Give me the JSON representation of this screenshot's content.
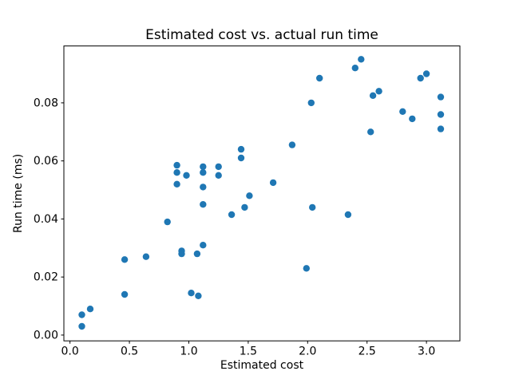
{
  "figure": {
    "background_color": "#ffffff",
    "frame_color": "#000000"
  },
  "chart_data": {
    "type": "scatter",
    "title": "Estimated cost vs. actual run time",
    "xlabel": "Estimated cost",
    "ylabel": "Run time (ms)",
    "marker_color": "#1f77b4",
    "marker_shape": "circle",
    "grid": false,
    "legend": null,
    "xlim": [
      -0.0515,
      3.2815
    ],
    "ylim": [
      -0.002,
      0.0996
    ],
    "x_ticks": [
      0.0,
      0.5,
      1.0,
      1.5,
      2.0,
      2.5,
      3.0
    ],
    "x_tick_labels": [
      "0.0",
      "0.5",
      "1.0",
      "1.5",
      "2.0",
      "2.5",
      "3.0"
    ],
    "y_ticks": [
      0.0,
      0.02,
      0.04,
      0.06,
      0.08
    ],
    "y_tick_labels": [
      "0.00",
      "0.02",
      "0.04",
      "0.06",
      "0.08"
    ],
    "points": [
      [
        0.1,
        0.003
      ],
      [
        0.1,
        0.007
      ],
      [
        0.17,
        0.009
      ],
      [
        0.46,
        0.014
      ],
      [
        0.46,
        0.026
      ],
      [
        0.64,
        0.027
      ],
      [
        0.82,
        0.039
      ],
      [
        0.9,
        0.0585
      ],
      [
        0.9,
        0.056
      ],
      [
        0.9,
        0.052
      ],
      [
        0.94,
        0.029
      ],
      [
        0.94,
        0.028
      ],
      [
        0.98,
        0.055
      ],
      [
        1.02,
        0.0145
      ],
      [
        1.08,
        0.0135
      ],
      [
        1.07,
        0.028
      ],
      [
        1.12,
        0.058
      ],
      [
        1.12,
        0.056
      ],
      [
        1.12,
        0.051
      ],
      [
        1.12,
        0.045
      ],
      [
        1.12,
        0.031
      ],
      [
        1.25,
        0.058
      ],
      [
        1.25,
        0.055
      ],
      [
        1.36,
        0.0415
      ],
      [
        1.44,
        0.064
      ],
      [
        1.44,
        0.061
      ],
      [
        1.47,
        0.044
      ],
      [
        1.51,
        0.048
      ],
      [
        1.71,
        0.0525
      ],
      [
        1.87,
        0.0655
      ],
      [
        1.99,
        0.023
      ],
      [
        2.03,
        0.08
      ],
      [
        2.04,
        0.044
      ],
      [
        2.1,
        0.0885
      ],
      [
        2.34,
        0.0415
      ],
      [
        2.4,
        0.092
      ],
      [
        2.45,
        0.095
      ],
      [
        2.53,
        0.07
      ],
      [
        2.55,
        0.0825
      ],
      [
        2.6,
        0.084
      ],
      [
        2.8,
        0.077
      ],
      [
        2.88,
        0.0745
      ],
      [
        2.95,
        0.0885
      ],
      [
        3.0,
        0.09
      ],
      [
        3.12,
        0.082
      ],
      [
        3.12,
        0.076
      ],
      [
        3.12,
        0.071
      ]
    ]
  }
}
